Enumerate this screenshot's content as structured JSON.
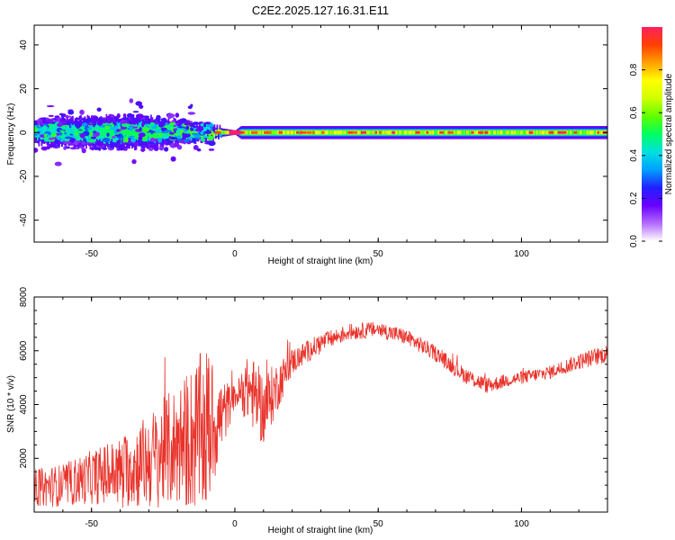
{
  "chart_data": [
    {
      "type": "heatmap",
      "title": "C2E2.2025.127.16.31.E11",
      "xlabel": "Height of straight line (km)",
      "ylabel": "Frequency (Hz)",
      "xlim": [
        -70,
        130
      ],
      "ylim": [
        -50,
        49
      ],
      "xticks": [
        -50,
        0,
        50,
        100
      ],
      "xtick_labels": [
        "-50",
        "0",
        "50",
        "100"
      ],
      "yticks": [
        -40,
        -20,
        0,
        20,
        40
      ],
      "ytick_labels": [
        "-40",
        "-20",
        "0",
        "20",
        "40"
      ],
      "colorbar": {
        "label": "Normalized spectral amplitude",
        "range": [
          0,
          1
        ],
        "ticks": [
          0.0,
          0.2,
          0.4,
          0.6,
          0.8
        ],
        "tick_labels": [
          "0.0",
          "0.2",
          "0.4",
          "0.6",
          "0.8"
        ],
        "colors": [
          "#ffffff",
          "#b36bff",
          "#6a00ff",
          "#2020ff",
          "#00a0ff",
          "#00e0e0",
          "#00ff60",
          "#60ff00",
          "#d0ff00",
          "#ffff00",
          "#ffa000",
          "#ff4000",
          "#ff2060"
        ]
      },
      "band": {
        "center_hz": 0,
        "profile": [
          {
            "x": -70,
            "halfwidth_hz": 5,
            "intensity": 0.5
          },
          {
            "x": -50,
            "halfwidth_hz": 7,
            "intensity": 0.6
          },
          {
            "x": -30,
            "halfwidth_hz": 7,
            "intensity": 0.65
          },
          {
            "x": -10,
            "halfwidth_hz": 3,
            "intensity": 0.75
          },
          {
            "x": 0,
            "halfwidth_hz": 1,
            "intensity": 1.0
          },
          {
            "x": 2,
            "halfwidth_hz": 3,
            "intensity": 0.9
          },
          {
            "x": 130,
            "halfwidth_hz": 3,
            "intensity": 0.85
          }
        ]
      }
    },
    {
      "type": "line",
      "title": "",
      "xlabel": "Height of straight line (km)",
      "ylabel": "SNR (10 * v/v)",
      "xlim": [
        -70,
        130
      ],
      "ylim": [
        0,
        8000
      ],
      "xticks": [
        -50,
        0,
        50,
        100
      ],
      "xtick_labels": [
        "-50",
        "0",
        "50",
        "100"
      ],
      "yticks": [
        2000,
        4000,
        6000,
        8000
      ],
      "ytick_labels": [
        "2000",
        "4000",
        "6000",
        "8000"
      ],
      "series": [
        {
          "name": "SNR",
          "color": "#e8322a",
          "envelope": [
            {
              "x": -70,
              "mean": 900,
              "amp": 700
            },
            {
              "x": -60,
              "mean": 1000,
              "amp": 800
            },
            {
              "x": -50,
              "mean": 1300,
              "amp": 1000
            },
            {
              "x": -40,
              "mean": 1500,
              "amp": 1300
            },
            {
              "x": -30,
              "mean": 1900,
              "amp": 1800
            },
            {
              "x": -20,
              "mean": 2500,
              "amp": 2300
            },
            {
              "x": -10,
              "mean": 3000,
              "amp": 3200
            },
            {
              "x": -5,
              "mean": 3500,
              "amp": 1500
            },
            {
              "x": 0,
              "mean": 4300,
              "amp": 400
            },
            {
              "x": 5,
              "mean": 4600,
              "amp": 1300
            },
            {
              "x": 10,
              "mean": 3800,
              "amp": 1400
            },
            {
              "x": 15,
              "mean": 4700,
              "amp": 900
            },
            {
              "x": 20,
              "mean": 5600,
              "amp": 500
            },
            {
              "x": 30,
              "mean": 6300,
              "amp": 350
            },
            {
              "x": 40,
              "mean": 6700,
              "amp": 300
            },
            {
              "x": 50,
              "mean": 6800,
              "amp": 300
            },
            {
              "x": 60,
              "mean": 6500,
              "amp": 300
            },
            {
              "x": 70,
              "mean": 5900,
              "amp": 300
            },
            {
              "x": 80,
              "mean": 5100,
              "amp": 300
            },
            {
              "x": 88,
              "mean": 4700,
              "amp": 300
            },
            {
              "x": 95,
              "mean": 4900,
              "amp": 250
            },
            {
              "x": 110,
              "mean": 5200,
              "amp": 250
            },
            {
              "x": 120,
              "mean": 5600,
              "amp": 300
            },
            {
              "x": 130,
              "mean": 5900,
              "amp": 350
            }
          ]
        }
      ]
    }
  ]
}
